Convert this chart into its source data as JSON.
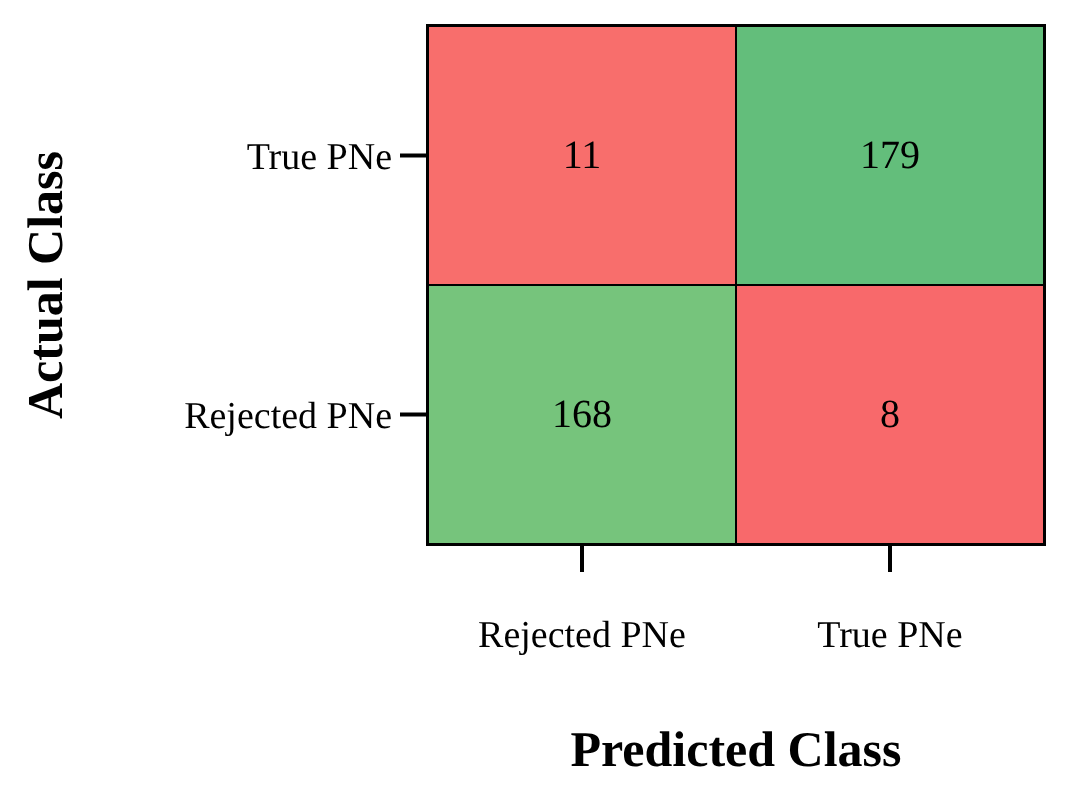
{
  "chart_data": {
    "type": "heatmap",
    "data_labels": true,
    "xlabel": "Predicted Class",
    "ylabel": "Actual Class",
    "categories": [
      "Rejected PNe",
      "True PNe"
    ],
    "y_categories": [
      "True PNe",
      "Rejected PNe"
    ],
    "cells": [
      [
        11,
        179
      ],
      [
        168,
        8
      ]
    ]
  }
}
